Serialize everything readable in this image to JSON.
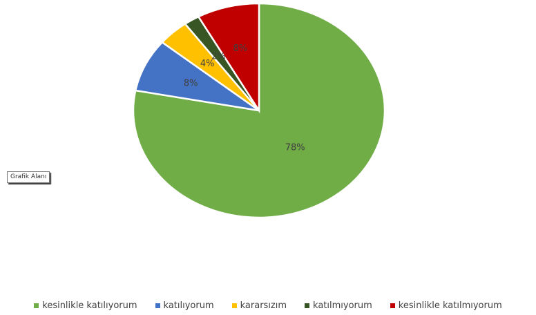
{
  "tooltip": {
    "text": "Grafik Alanı"
  },
  "chart_data": {
    "type": "pie",
    "categories": [
      "kesinlikle katılıyorum",
      "katılıyorum",
      "kararsızım",
      "katılmıyorum",
      "kesinlikle katılmıyorum"
    ],
    "values": [
      78,
      8,
      4,
      2,
      8
    ],
    "data_labels": [
      "78%",
      "8%",
      "4%",
      "2%",
      "8%"
    ],
    "colors": [
      "#70ad47",
      "#4472c4",
      "#ffc000",
      "#375623",
      "#c00000"
    ],
    "start": "12 o'clock",
    "direction": "clockwise",
    "legend_position": "bottom"
  }
}
